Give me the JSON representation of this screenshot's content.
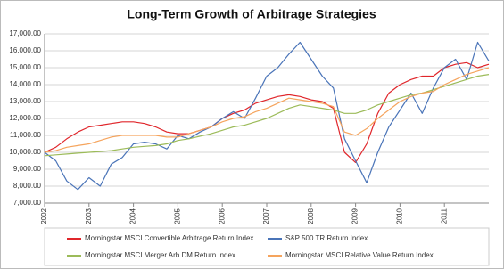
{
  "chart_data": {
    "type": "line",
    "title": "Long-Term Growth of Arbitrage Strategies",
    "x": [
      2002,
      2002.25,
      2002.5,
      2002.75,
      2003,
      2003.25,
      2003.5,
      2003.75,
      2004,
      2004.25,
      2004.5,
      2004.75,
      2005,
      2005.25,
      2005.5,
      2005.75,
      2006,
      2006.25,
      2006.5,
      2006.75,
      2007,
      2007.25,
      2007.5,
      2007.75,
      2008,
      2008.25,
      2008.5,
      2008.75,
      2009,
      2009.25,
      2009.5,
      2009.75,
      2010,
      2010.25,
      2010.5,
      2010.75,
      2011,
      2011.25,
      2011.5,
      2011.75,
      2012
    ],
    "series": [
      {
        "name": "Morningstar MSCI Convertible Arbitrage Return Index",
        "color": "#e0262b",
        "values": [
          10000,
          10300,
          10800,
          11200,
          11500,
          11600,
          11700,
          11800,
          11800,
          11700,
          11500,
          11200,
          11100,
          11100,
          11300,
          11500,
          12000,
          12300,
          12500,
          12900,
          13100,
          13300,
          13400,
          13300,
          13100,
          13000,
          12600,
          10000,
          9400,
          10500,
          12300,
          13500,
          14000,
          14300,
          14500,
          14500,
          15000,
          15200,
          15300,
          15000,
          15200
        ]
      },
      {
        "name": "S&P 500 TR Return Index",
        "color": "#4a74b8",
        "values": [
          10000,
          9500,
          8300,
          7800,
          8500,
          8000,
          9300,
          9700,
          10500,
          10600,
          10500,
          10200,
          11000,
          10800,
          11200,
          11500,
          12000,
          12400,
          12000,
          13200,
          14500,
          15000,
          15800,
          16500,
          15500,
          14500,
          13800,
          10800,
          9500,
          8200,
          10000,
          11500,
          12500,
          13500,
          12300,
          13800,
          15000,
          15500,
          14300,
          16500,
          15400
        ]
      },
      {
        "name": "Morningstar MSCI Merger Arb DM Return Index",
        "color": "#9cbb59",
        "values": [
          9800,
          9850,
          9900,
          9950,
          10000,
          10050,
          10100,
          10200,
          10300,
          10350,
          10400,
          10500,
          10700,
          10800,
          10950,
          11100,
          11300,
          11500,
          11600,
          11800,
          12000,
          12300,
          12600,
          12800,
          12700,
          12600,
          12500,
          12300,
          12300,
          12500,
          12800,
          13000,
          13200,
          13400,
          13500,
          13700,
          13900,
          14100,
          14300,
          14500,
          14600
        ]
      },
      {
        "name": "Morningstar MSCI Relative Value Return Index",
        "color": "#f5a45d",
        "values": [
          10000,
          10100,
          10300,
          10400,
          10500,
          10700,
          10900,
          11000,
          11000,
          11000,
          11000,
          10900,
          10900,
          11100,
          11300,
          11500,
          11800,
          12000,
          12100,
          12400,
          12600,
          12900,
          13200,
          13100,
          13000,
          12900,
          12700,
          11200,
          11000,
          11400,
          12000,
          12500,
          13000,
          13300,
          13500,
          13600,
          14000,
          14300,
          14600,
          14800,
          15000
        ]
      }
    ],
    "xlim": [
      2002,
      2012
    ],
    "xticks": [
      2002,
      2003,
      2004,
      2005,
      2006,
      2007,
      2008,
      2009,
      2010,
      2011
    ],
    "ylim": [
      7000,
      17000
    ],
    "yticks": [
      {
        "value": 7000,
        "label": "7,000.00"
      },
      {
        "value": 8000,
        "label": "8,000.00"
      },
      {
        "value": 9000,
        "label": "9,000.00"
      },
      {
        "value": 10000,
        "label": "10,000.00"
      },
      {
        "value": 11000,
        "label": "11,000.00"
      },
      {
        "value": 12000,
        "label": "12,000.00"
      },
      {
        "value": 13000,
        "label": "13,000.00"
      },
      {
        "value": 14000,
        "label": "14,000.00"
      },
      {
        "value": 15000,
        "label": "15,000.00"
      },
      {
        "value": 16000,
        "label": "16,000.00"
      },
      {
        "value": 17000,
        "label": "17,000.00"
      }
    ],
    "grid": true
  }
}
